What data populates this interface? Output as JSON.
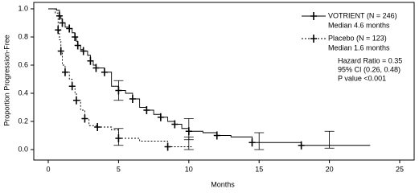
{
  "chart_data": {
    "type": "step",
    "xlabel": "Months",
    "ylabel": "Proportion Progression-Free",
    "xlim": [
      0,
      25
    ],
    "xticks": [
      0,
      5,
      10,
      15,
      20,
      25
    ],
    "ylim": [
      0,
      1
    ],
    "yticks": [
      {
        "value": 0,
        "label": "0.0"
      },
      {
        "value": 0.2,
        "label": "0.2"
      },
      {
        "value": 0.4,
        "label": "0.4"
      },
      {
        "value": 0.6,
        "label": "0.6"
      },
      {
        "value": 0.8,
        "label": "0.8"
      },
      {
        "value": 1,
        "label": "1.0"
      }
    ],
    "series": [
      {
        "name": "VOTRIENT (N = 246)",
        "subtitle": "Median 4.6 months",
        "color": "#000000",
        "dash": false,
        "x": [
          0,
          0.6,
          0.8,
          0.9,
          1.0,
          1.2,
          1.5,
          1.7,
          1.9,
          2.0,
          2.1,
          2.3,
          2.5,
          2.8,
          3.0,
          3.2,
          3.4,
          3.7,
          4.0,
          4.5,
          5.0,
          5.5,
          6.0,
          6.5,
          7.0,
          7.5,
          8.0,
          8.5,
          9.0,
          9.5,
          10.0,
          11.0,
          12.0,
          13.0,
          14.5,
          17.5,
          18.0,
          22.9
        ],
        "values": [
          1.0,
          0.99,
          0.95,
          0.93,
          0.9,
          0.87,
          0.86,
          0.83,
          0.8,
          0.77,
          0.74,
          0.71,
          0.7,
          0.67,
          0.63,
          0.6,
          0.58,
          0.58,
          0.55,
          0.45,
          0.42,
          0.4,
          0.36,
          0.3,
          0.28,
          0.25,
          0.23,
          0.2,
          0.18,
          0.15,
          0.13,
          0.12,
          0.1,
          0.09,
          0.05,
          0.05,
          0.03,
          0.03
        ],
        "ci": [
          {
            "x": 5,
            "lower": 0.35,
            "upper": 0.49
          },
          {
            "x": 10,
            "lower": 0.07,
            "upper": 0.22
          },
          {
            "x": 15,
            "lower": 0.0,
            "upper": 0.12
          },
          {
            "x": 20,
            "lower": 0.01,
            "upper": 0.13
          }
        ]
      },
      {
        "name": "Placebo (N = 123)",
        "subtitle": "Median 1.6 months",
        "color": "#000000",
        "dash": true,
        "x": [
          0,
          0.5,
          0.7,
          0.8,
          0.9,
          1.0,
          1.2,
          1.5,
          1.7,
          1.9,
          2.0,
          2.3,
          2.6,
          2.9,
          3.5,
          4.5,
          5.0,
          6.5,
          8.5,
          10.2
        ],
        "values": [
          1.0,
          0.97,
          0.85,
          0.78,
          0.7,
          0.6,
          0.55,
          0.5,
          0.45,
          0.4,
          0.35,
          0.28,
          0.22,
          0.17,
          0.16,
          0.14,
          0.08,
          0.06,
          0.02,
          0.02
        ],
        "ci": [
          {
            "x": 5,
            "lower": 0.03,
            "upper": 0.15
          },
          {
            "x": 10,
            "lower": 0.0,
            "upper": 0.09
          }
        ]
      }
    ],
    "annotations": [
      "Hazard Ratio = 0.35",
      "95% CI (0.26, 0.48)",
      "P value <0.001"
    ]
  }
}
